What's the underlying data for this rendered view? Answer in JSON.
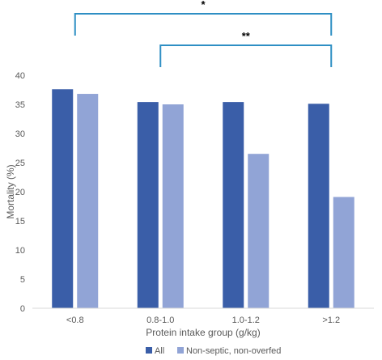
{
  "chart_data": {
    "type": "bar",
    "title": "",
    "xlabel": "Protein intake group (g/kg)",
    "ylabel": "Mortality (%)",
    "ylim": [
      0,
      40
    ],
    "yticks": [
      0,
      5,
      10,
      15,
      20,
      25,
      30,
      35,
      40
    ],
    "grid": false,
    "legend_position": "bottom",
    "categories": [
      "<0.8",
      "0.8-1.0",
      "1.0-1.2",
      ">1.2"
    ],
    "series": [
      {
        "name": "All",
        "color": "#3a5ea8",
        "values": [
          37.6,
          35.4,
          35.4,
          35.1
        ]
      },
      {
        "name": "Non-septic, non-overfed",
        "color": "#91a4d6",
        "values": [
          36.8,
          35.0,
          26.5,
          19.1
        ]
      }
    ],
    "annotations": [
      {
        "label": "*",
        "from_category": "<0.8",
        "to_category": ">1.2",
        "color": "#2e8fc4"
      },
      {
        "label": "**",
        "from_category": "0.8-1.0",
        "to_category": ">1.2",
        "color": "#2e8fc4"
      }
    ]
  }
}
